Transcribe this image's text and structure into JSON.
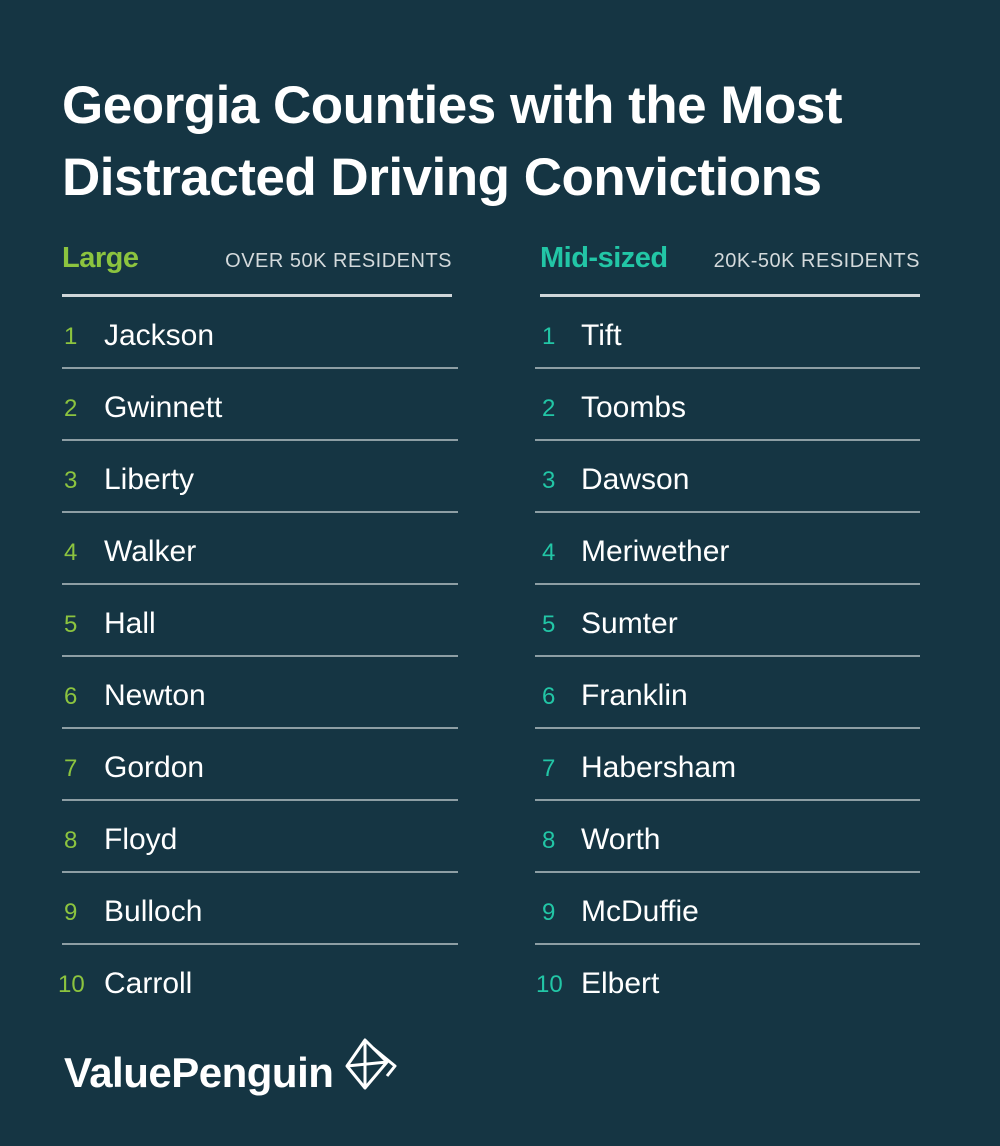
{
  "title_line1": "Georgia Counties with the Most",
  "title_line2": "Distracted Driving Convictions",
  "large": {
    "label": "Large",
    "subtitle": "OVER 50K RESIDENTS",
    "color": "#8cc43f",
    "items": [
      {
        "rank": "1",
        "name": "Jackson"
      },
      {
        "rank": "2",
        "name": "Gwinnett"
      },
      {
        "rank": "3",
        "name": "Liberty"
      },
      {
        "rank": "4",
        "name": "Walker"
      },
      {
        "rank": "5",
        "name": "Hall"
      },
      {
        "rank": "6",
        "name": "Newton"
      },
      {
        "rank": "7",
        "name": "Gordon"
      },
      {
        "rank": "8",
        "name": "Floyd"
      },
      {
        "rank": "9",
        "name": "Bulloch"
      },
      {
        "rank": "10",
        "name": "Carroll"
      }
    ]
  },
  "midsized": {
    "label": "Mid-sized",
    "subtitle": "20K-50K RESIDENTS",
    "color": "#22c6a6",
    "items": [
      {
        "rank": "1",
        "name": "Tift"
      },
      {
        "rank": "2",
        "name": "Toombs"
      },
      {
        "rank": "3",
        "name": "Dawson"
      },
      {
        "rank": "4",
        "name": "Meriwether"
      },
      {
        "rank": "5",
        "name": "Sumter"
      },
      {
        "rank": "6",
        "name": "Franklin"
      },
      {
        "rank": "7",
        "name": "Habersham"
      },
      {
        "rank": "8",
        "name": "Worth"
      },
      {
        "rank": "9",
        "name": "McDuffie"
      },
      {
        "rank": "10",
        "name": "Elbert"
      }
    ]
  },
  "brand": {
    "name": "ValuePenguin",
    "logo_icon": "valuepenguin-logo-icon"
  },
  "background_color": "#153543"
}
